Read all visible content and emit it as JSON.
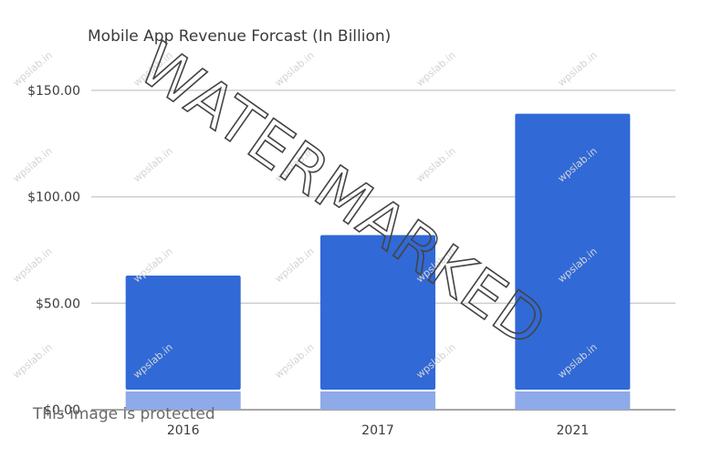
{
  "chart_data": {
    "type": "bar",
    "title": "Mobile App Revenue Forcast (In Billion)",
    "categories": [
      "2016",
      "2017",
      "2021"
    ],
    "values": [
      63,
      82,
      139
    ],
    "ylim": [
      0,
      150
    ],
    "yticks": [
      0,
      50,
      100,
      150
    ],
    "ytick_labels": [
      "$0.00",
      "$50.00",
      "$100.00",
      "$150.00"
    ],
    "xlabel": "",
    "ylabel": "",
    "grid": true,
    "legend": "none",
    "bar_color": "#3169d7",
    "bar_base_color": "#8eaae8"
  },
  "watermark": {
    "text": "WATERMARKED",
    "tile_text": "wpslab.in",
    "note": "This image is protected"
  }
}
